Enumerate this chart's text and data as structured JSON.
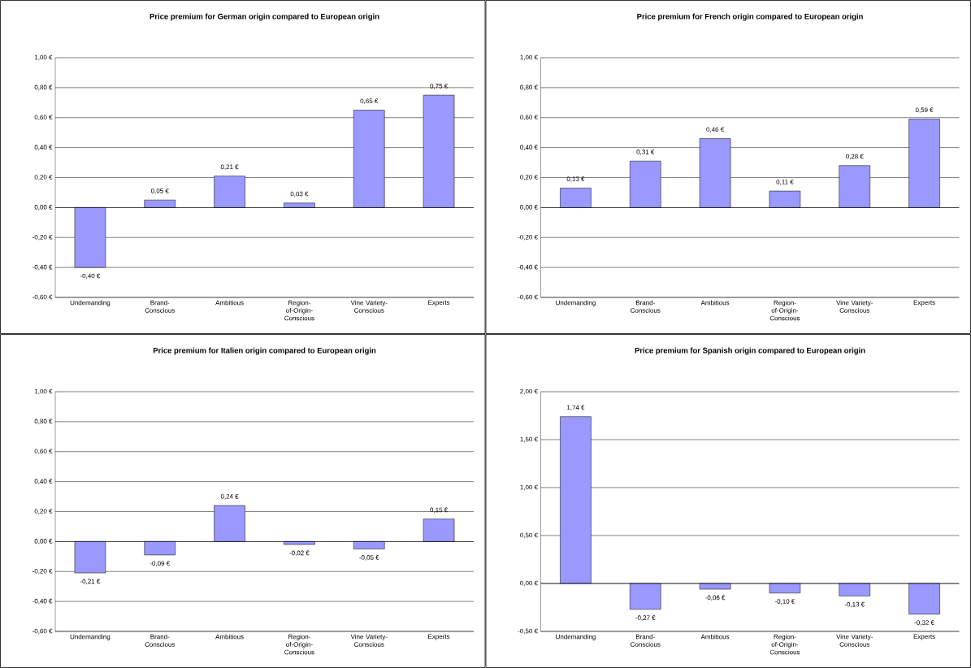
{
  "chart_data": [
    {
      "type": "bar",
      "title": "Price premium for German origin compared to European origin",
      "categories": [
        "Undemanding",
        "Brand-Conscious",
        "Ambitious",
        "Region-of-Origin-Conscious",
        "Vine Variety-Conscious",
        "Experts"
      ],
      "values": [
        -0.4,
        0.05,
        0.21,
        0.03,
        0.65,
        0.75
      ],
      "value_labels": [
        "-0,40 €",
        "0,05 €",
        "0,21 €",
        "0,03 €",
        "0,65 €",
        "0,75 €"
      ],
      "color": "#9999ff",
      "ylim": [
        -0.6,
        1.0
      ],
      "yticks": [
        {
          "value": -0.6,
          "label": "-0,60 €"
        },
        {
          "value": -0.4,
          "label": "-0,40 €"
        },
        {
          "value": -0.2,
          "label": "-0,20 €"
        },
        {
          "value": 0,
          "label": "0,00 €"
        },
        {
          "value": 0.2,
          "label": "0,20 €"
        },
        {
          "value": 0.4,
          "label": "0,40 €"
        },
        {
          "value": 0.6,
          "label": "0,60 €"
        },
        {
          "value": 0.8,
          "label": "0,80 €"
        },
        {
          "value": 1.0,
          "label": "1,00 €"
        }
      ],
      "grid": "y"
    },
    {
      "type": "bar",
      "title": "Price premium for French origin compared to European origin",
      "categories": [
        "Undemanding",
        "Brand-Conscious",
        "Ambitious",
        "Region-of-Origin-Conscious",
        "Vine Variety-Conscious",
        "Experts"
      ],
      "values": [
        0.13,
        0.31,
        0.46,
        0.11,
        0.28,
        0.59
      ],
      "value_labels": [
        "0,13 €",
        "0,31 €",
        "0,46 €",
        "0,11 €",
        "0,28 €",
        "0,59 €"
      ],
      "color": "#9999ff",
      "ylim": [
        -0.6,
        1.0
      ],
      "yticks": [
        {
          "value": -0.6,
          "label": "-0,60 €"
        },
        {
          "value": -0.4,
          "label": "-0,40 €"
        },
        {
          "value": -0.2,
          "label": "-0,20 €"
        },
        {
          "value": 0,
          "label": "0,00 €"
        },
        {
          "value": 0.2,
          "label": "0,20 €"
        },
        {
          "value": 0.4,
          "label": "0,40 €"
        },
        {
          "value": 0.6,
          "label": "0,60 €"
        },
        {
          "value": 0.8,
          "label": "0,80 €"
        },
        {
          "value": 1.0,
          "label": "1,00 €"
        }
      ],
      "grid": "y"
    },
    {
      "type": "bar",
      "title": "Price premium for Italien origin compared to European origin",
      "categories": [
        "Undemanding",
        "Brand-Conscious",
        "Ambitious",
        "Region-of-Origin-Conscious",
        "Vine Variety-Conscious",
        "Experts"
      ],
      "values": [
        -0.21,
        -0.09,
        0.24,
        -0.02,
        -0.05,
        0.15
      ],
      "value_labels": [
        "-0,21 €",
        "-0,09 €",
        "0,24 €",
        "-0,02 €",
        "-0,05 €",
        "0,15 €"
      ],
      "color": "#9999ff",
      "ylim": [
        -0.6,
        1.0
      ],
      "yticks": [
        {
          "value": -0.6,
          "label": "-0,60 €"
        },
        {
          "value": -0.4,
          "label": "-0,40 €"
        },
        {
          "value": -0.2,
          "label": "-0,20 €"
        },
        {
          "value": 0,
          "label": "0,00 €"
        },
        {
          "value": 0.2,
          "label": "0,20 €"
        },
        {
          "value": 0.4,
          "label": "0,40 €"
        },
        {
          "value": 0.6,
          "label": "0,60 €"
        },
        {
          "value": 0.8,
          "label": "0,80 €"
        },
        {
          "value": 1.0,
          "label": "1,00 €"
        }
      ],
      "grid": "y"
    },
    {
      "type": "bar",
      "title": "Price premium for Spanish origin compared to European origin",
      "categories": [
        "Undemanding",
        "Brand-Conscious",
        "Ambitious",
        "Region-of-Origin-Conscious",
        "Vine Variety-Conscious",
        "Experts"
      ],
      "values": [
        1.74,
        -0.27,
        -0.06,
        -0.1,
        -0.13,
        -0.32
      ],
      "value_labels": [
        "1,74 €",
        "-0,27 €",
        "-0,06 €",
        "-0,10 €",
        "-0,13 €",
        "-0,32 €"
      ],
      "color": "#9999ff",
      "ylim": [
        -0.5,
        2.0
      ],
      "yticks": [
        {
          "value": -0.5,
          "label": "-0,50 €"
        },
        {
          "value": 0,
          "label": "0,00 €"
        },
        {
          "value": 0.5,
          "label": "0,50 €"
        },
        {
          "value": 1.0,
          "label": "1,00 €"
        },
        {
          "value": 1.5,
          "label": "1,50 €"
        },
        {
          "value": 2.0,
          "label": "2,00 €"
        }
      ],
      "grid": "y"
    }
  ]
}
